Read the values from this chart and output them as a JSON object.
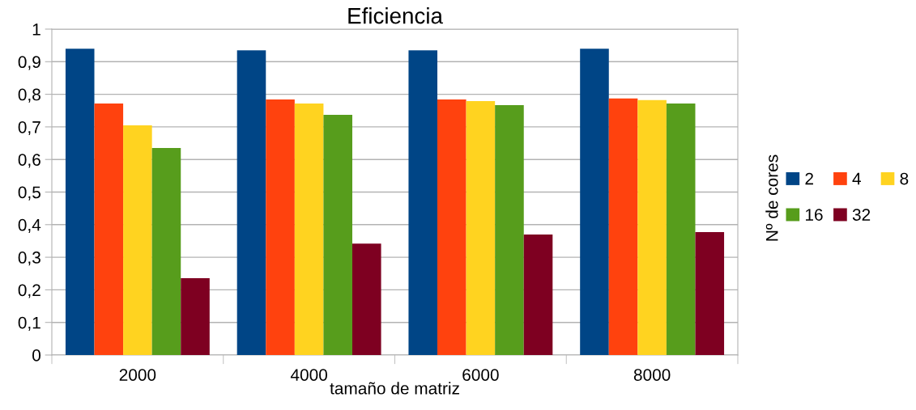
{
  "chart_data": {
    "type": "bar",
    "title": "Eficiencia",
    "xlabel": "tamaño de matriz",
    "legend_title": "Nº de cores",
    "categories": [
      "2000",
      "4000",
      "6000",
      "8000"
    ],
    "series": [
      {
        "name": "2",
        "color": "#004586",
        "values": [
          0.94,
          0.935,
          0.935,
          0.94
        ]
      },
      {
        "name": "4",
        "color": "#ff420e",
        "values": [
          0.772,
          0.784,
          0.784,
          0.787
        ]
      },
      {
        "name": "8",
        "color": "#ffd320",
        "values": [
          0.705,
          0.772,
          0.779,
          0.782
        ]
      },
      {
        "name": "16",
        "color": "#579d1c",
        "values": [
          0.635,
          0.737,
          0.767,
          0.772
        ]
      },
      {
        "name": "32",
        "color": "#7e0021",
        "values": [
          0.236,
          0.342,
          0.37,
          0.377
        ]
      }
    ],
    "ylim": [
      0,
      1
    ],
    "yticks": [
      {
        "value": 0,
        "label": "0"
      },
      {
        "value": 0.1,
        "label": "0,1"
      },
      {
        "value": 0.2,
        "label": "0,2"
      },
      {
        "value": 0.3,
        "label": "0,3"
      },
      {
        "value": 0.4,
        "label": "0,4"
      },
      {
        "value": 0.5,
        "label": "0,5"
      },
      {
        "value": 0.6,
        "label": "0,6"
      },
      {
        "value": 0.7,
        "label": "0,7"
      },
      {
        "value": 0.8,
        "label": "0,8"
      },
      {
        "value": 0.9,
        "label": "0,9"
      },
      {
        "value": 1,
        "label": "1"
      }
    ],
    "grid": "y",
    "legend": "right"
  }
}
